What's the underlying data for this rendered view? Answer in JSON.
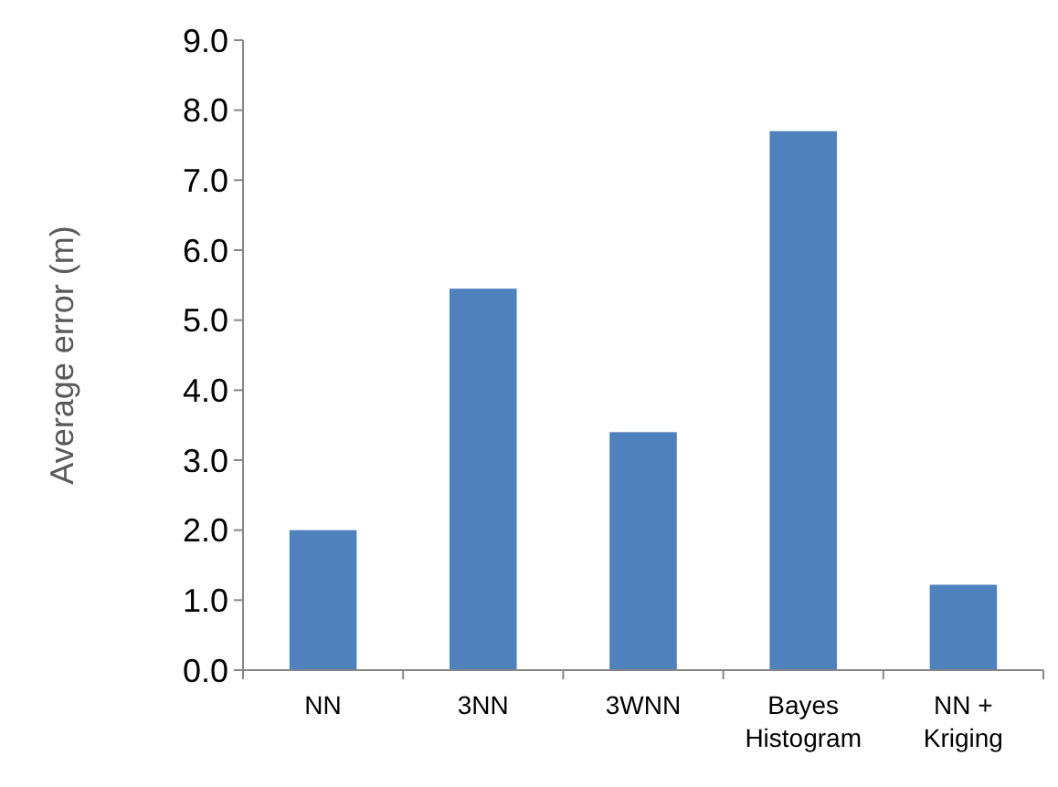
{
  "chart_data": {
    "type": "bar",
    "ylabel": "Average error (m)",
    "categories": [
      "NN",
      "3NN",
      "3WNN",
      "Bayes Histogram",
      "NN + Kriging"
    ],
    "values": [
      2.0,
      5.45,
      3.4,
      7.7,
      1.22
    ],
    "color": "#4f81bd",
    "ylim": [
      0,
      9
    ],
    "yticks": [
      {
        "value": 0,
        "label": "0.0"
      },
      {
        "value": 1,
        "label": "1.0"
      },
      {
        "value": 2,
        "label": "2.0"
      },
      {
        "value": 3,
        "label": "3.0"
      },
      {
        "value": 4,
        "label": "4.0"
      },
      {
        "value": 5,
        "label": "5.0"
      },
      {
        "value": 6,
        "label": "6.0"
      },
      {
        "value": 7,
        "label": "7.0"
      },
      {
        "value": 8,
        "label": "8.0"
      },
      {
        "value": 9,
        "label": "9.0"
      }
    ]
  }
}
